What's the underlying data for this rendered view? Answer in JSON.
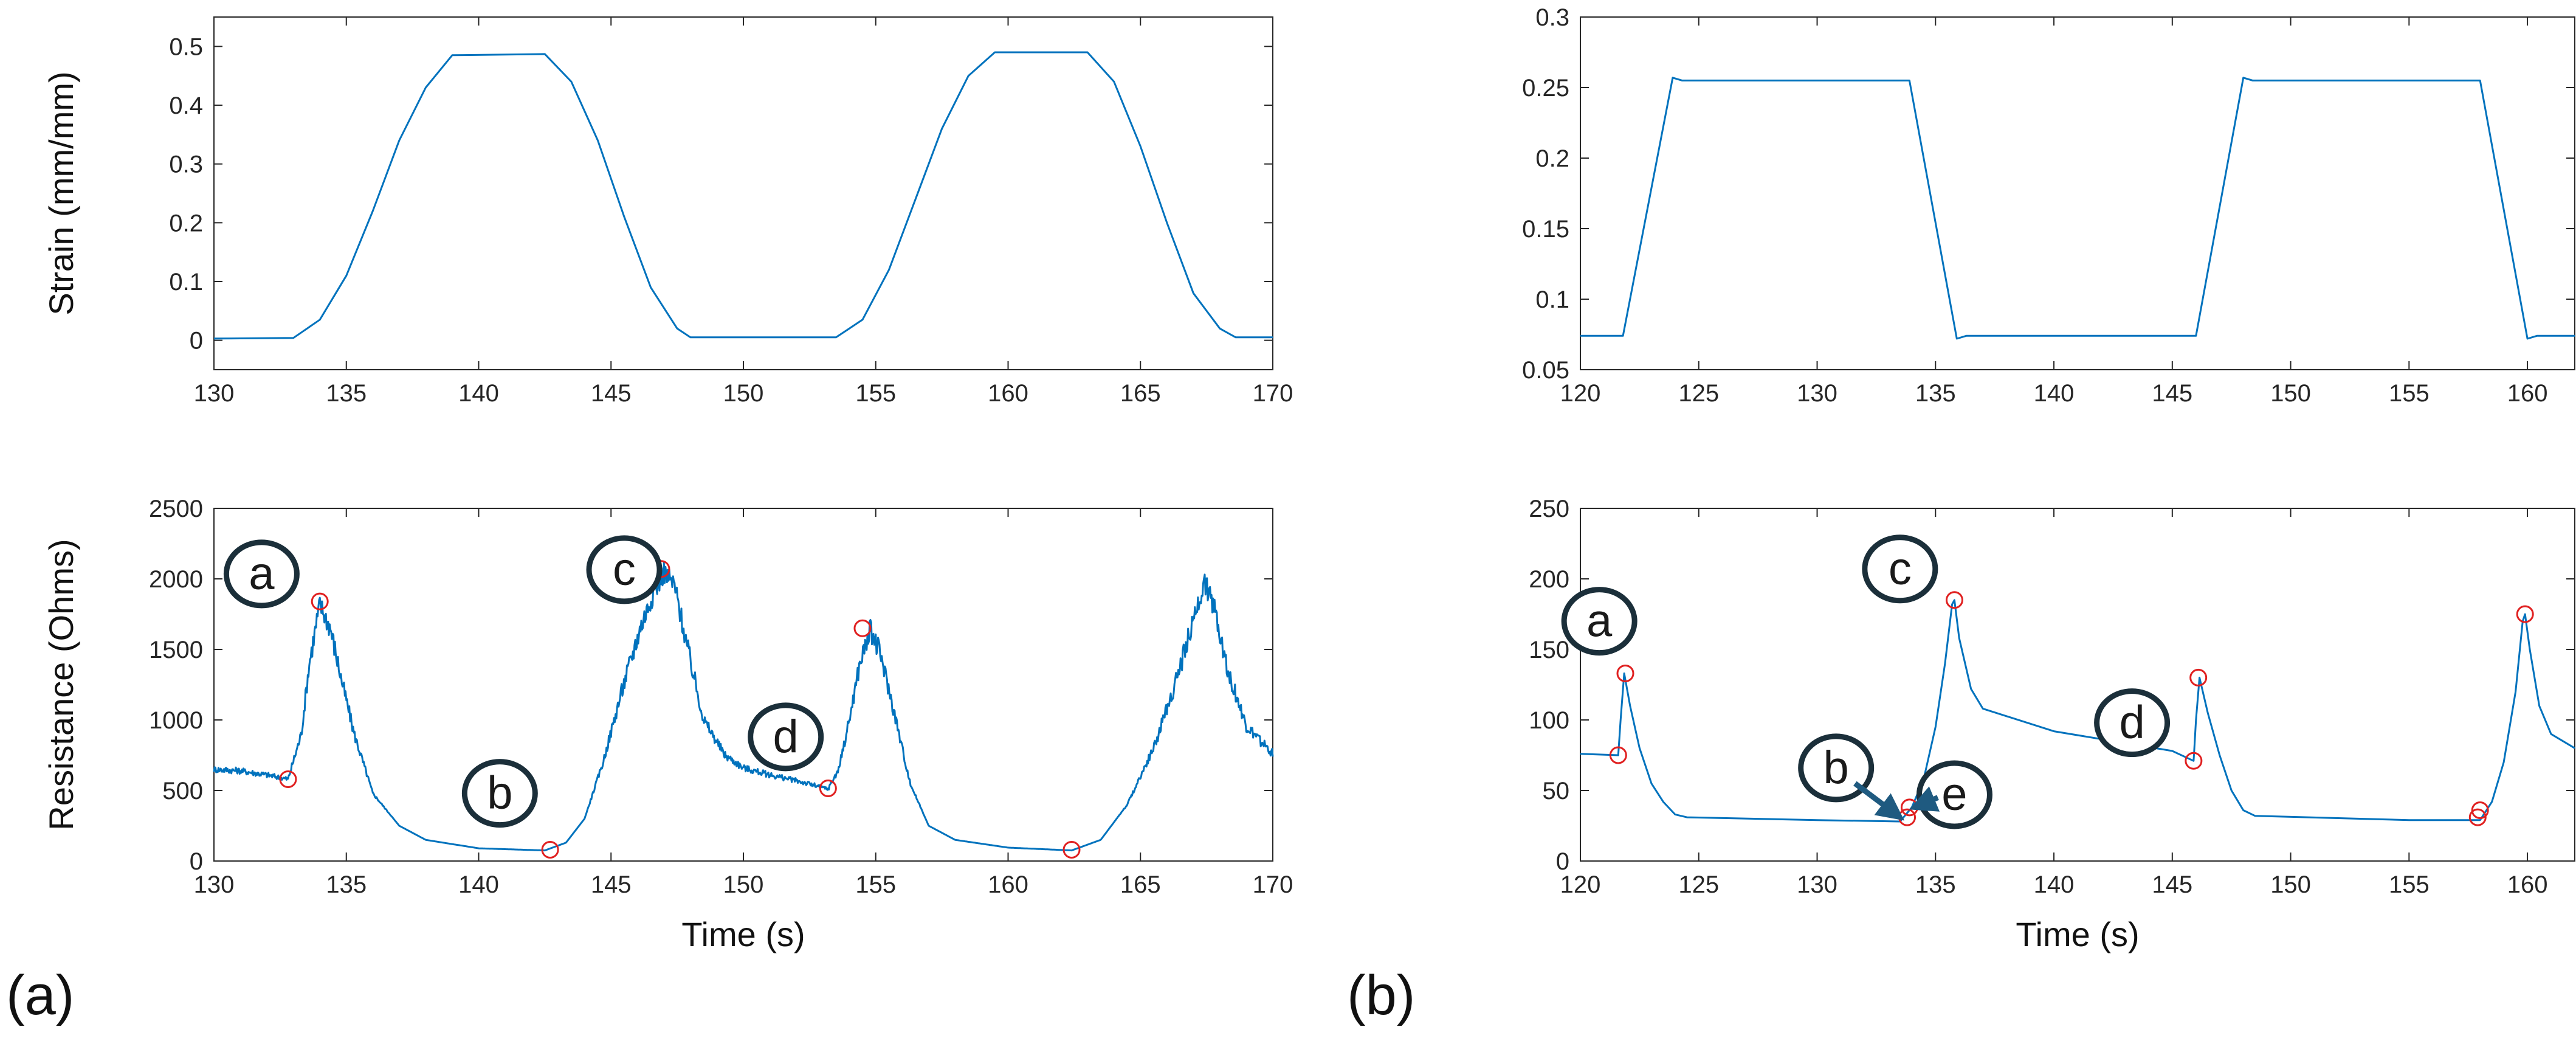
{
  "figure": {
    "panel_labels": [
      "(a)",
      "(b)"
    ]
  },
  "colors": {
    "line": "#0072BD",
    "marker": "#E02020",
    "axis": "#262626",
    "annotation": "#1b2f3a",
    "arrow": "#1f5a80"
  },
  "chart_data": [
    {
      "id": "a-top",
      "type": "line",
      "title": "",
      "xlabel": "",
      "ylabel": "Strain (mm/mm)",
      "xlim": [
        130,
        170
      ],
      "ylim": [
        -0.05,
        0.55
      ],
      "xticks": [
        130,
        135,
        140,
        145,
        150,
        155,
        160,
        165,
        170
      ],
      "yticks": [
        0,
        0.1,
        0.2,
        0.3,
        0.4,
        0.5
      ],
      "yticklabels": [
        "0",
        "0.1",
        "0.2",
        "0.3",
        "0.4",
        "0.5"
      ],
      "series": [
        {
          "name": "strain",
          "x": [
            130,
            133,
            134,
            135,
            136,
            137,
            138,
            139,
            142.5,
            143.5,
            144.5,
            145.5,
            146.5,
            147.5,
            148,
            153.5,
            154.5,
            155.5,
            156.5,
            157.5,
            158.5,
            159.5,
            163,
            164,
            165,
            166,
            167,
            168,
            168.6,
            170
          ],
          "y": [
            0.003,
            0.004,
            0.035,
            0.11,
            0.22,
            0.34,
            0.43,
            0.485,
            0.487,
            0.44,
            0.34,
            0.21,
            0.09,
            0.02,
            0.005,
            0.005,
            0.035,
            0.12,
            0.24,
            0.36,
            0.45,
            0.49,
            0.49,
            0.44,
            0.33,
            0.2,
            0.08,
            0.02,
            0.005,
            0.005
          ]
        }
      ]
    },
    {
      "id": "a-bottom",
      "type": "line",
      "title": "",
      "xlabel": "Time (s)",
      "ylabel": "Resistance (Ohms)",
      "xlim": [
        130,
        170
      ],
      "ylim": [
        0,
        2500
      ],
      "xticks": [
        130,
        135,
        140,
        145,
        150,
        155,
        160,
        165,
        170
      ],
      "yticks": [
        0,
        500,
        1000,
        1500,
        2000,
        2500
      ],
      "yticklabels": [
        "0",
        "500",
        "1000",
        "1500",
        "2000",
        "2500"
      ],
      "series": [
        {
          "name": "resistance",
          "noise": 80,
          "x": [
            130,
            131,
            132,
            132.8,
            133.3,
            133.6,
            134.0,
            134.4,
            134.8,
            135.3,
            136,
            137,
            138,
            140,
            142.5,
            143.3,
            144,
            144.7,
            145.4,
            146.1,
            146.6,
            147.0,
            147.4,
            147.9,
            148.5,
            149.3,
            150,
            151,
            152,
            153.2,
            153.6,
            154.0,
            154.4,
            154.8,
            155.2,
            155.7,
            156.3,
            157,
            158,
            160,
            162.4,
            163.5,
            164.5,
            165.5,
            166.3,
            167.0,
            167.4,
            167.8,
            168.3,
            169,
            170
          ],
          "y": [
            650,
            640,
            610,
            580,
            900,
            1400,
            1820,
            1650,
            1300,
            900,
            480,
            250,
            150,
            90,
            75,
            130,
            300,
            700,
            1200,
            1650,
            1900,
            2050,
            1950,
            1500,
            1000,
            750,
            660,
            610,
            570,
            510,
            650,
            1000,
            1400,
            1640,
            1450,
            1050,
            550,
            250,
            150,
            95,
            75,
            150,
            400,
            800,
            1250,
            1700,
            1980,
            1800,
            1350,
            950,
            760
          ]
        }
      ],
      "markers": {
        "x": [
          132.8,
          134.0,
          142.7,
          146.9,
          153.2,
          154.5,
          162.4
        ],
        "y": [
          580,
          1840,
          80,
          2070,
          515,
          1650,
          80
        ]
      },
      "annotations": [
        {
          "label": "a",
          "x": 131.8,
          "y": 2035
        },
        {
          "label": "b",
          "x": 140.8,
          "y": 480
        },
        {
          "label": "c",
          "x": 145.5,
          "y": 2065
        },
        {
          "label": "d",
          "x": 151.6,
          "y": 880
        }
      ]
    },
    {
      "id": "b-top",
      "type": "line",
      "title": "",
      "xlabel": "",
      "ylabel": "",
      "xlim": [
        120,
        162
      ],
      "ylim": [
        0.05,
        0.3
      ],
      "xticks": [
        120,
        125,
        130,
        135,
        140,
        145,
        150,
        155,
        160
      ],
      "yticks": [
        0.05,
        0.1,
        0.15,
        0.2,
        0.25,
        0.3
      ],
      "yticklabels": [
        "0.05",
        "0.1",
        "0.15",
        "0.2",
        "0.25",
        "0.3"
      ],
      "series": [
        {
          "name": "strain",
          "x": [
            120,
            121.8,
            123.9,
            124.3,
            133.9,
            135.9,
            136.3,
            146.0,
            148.0,
            148.4,
            158.0,
            160.0,
            160.4,
            162
          ],
          "y": [
            0.074,
            0.074,
            0.257,
            0.255,
            0.255,
            0.072,
            0.074,
            0.074,
            0.257,
            0.255,
            0.255,
            0.072,
            0.074,
            0.074
          ]
        }
      ]
    },
    {
      "id": "b-bottom",
      "type": "line",
      "title": "",
      "xlabel": "Time (s)",
      "ylabel": "",
      "xlim": [
        120,
        162
      ],
      "ylim": [
        0,
        250
      ],
      "xticks": [
        120,
        125,
        130,
        135,
        140,
        145,
        150,
        155,
        160
      ],
      "yticks": [
        0,
        50,
        100,
        150,
        200,
        250
      ],
      "yticklabels": [
        "0",
        "50",
        "100",
        "150",
        "200",
        "250"
      ],
      "series": [
        {
          "name": "resistance",
          "noise": 0,
          "x": [
            120,
            121.6,
            121.7,
            121.85,
            122.1,
            122.5,
            123,
            123.5,
            124,
            124.5,
            130,
            133.5,
            134,
            134.5,
            135,
            135.4,
            135.7,
            135.8,
            136,
            136.5,
            137,
            140,
            145,
            145.9,
            146.0,
            146.15,
            146.5,
            147,
            147.5,
            148,
            148.5,
            155,
            158,
            158.5,
            159,
            159.5,
            159.8,
            159.9,
            160.1,
            160.5,
            161,
            162
          ],
          "y": [
            76,
            75,
            100,
            133,
            110,
            80,
            55,
            42,
            33,
            31,
            29,
            28,
            38,
            58,
            95,
            140,
            182,
            185,
            158,
            122,
            108,
            92,
            78,
            71,
            100,
            130,
            105,
            75,
            50,
            36,
            32,
            29,
            29,
            42,
            70,
            120,
            170,
            175,
            150,
            110,
            90,
            80
          ]
        }
      ],
      "markers": {
        "x": [
          121.6,
          121.9,
          133.8,
          133.9,
          135.8,
          145.9,
          146.1,
          157.9,
          158.0,
          159.9
        ],
        "y": [
          75,
          133,
          31,
          38,
          185,
          71,
          130,
          31,
          36,
          175
        ]
      },
      "annotations": [
        {
          "label": "a",
          "x": 120.8,
          "y": 170
        },
        {
          "label": "b",
          "x": 130.8,
          "y": 66
        },
        {
          "label": "c",
          "x": 133.5,
          "y": 207
        },
        {
          "label": "d",
          "x": 143.3,
          "y": 98
        },
        {
          "label": "e",
          "x": 135.8,
          "y": 47
        }
      ]
    }
  ]
}
